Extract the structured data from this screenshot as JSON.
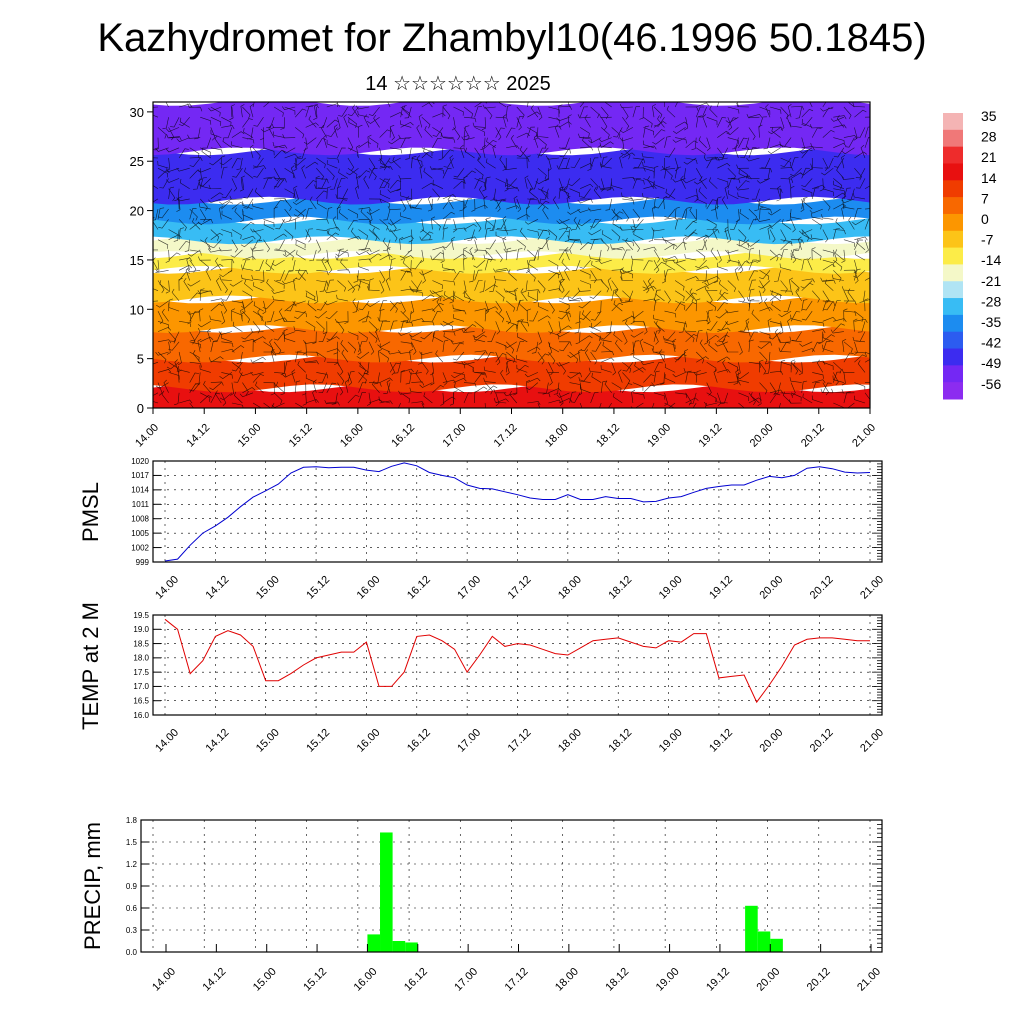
{
  "header": {
    "title": "Kazhydromet for Zhambyl10(46.1996 50.1845)",
    "subtitle": "14 ☆☆☆☆☆☆ 2025"
  },
  "colors": {
    "pmsl_line": "#0000d0",
    "temp_line": "#e00000",
    "precip_bar": "#00ff00",
    "wind_barb": "#000000"
  },
  "time_ticks": [
    "14.00",
    "14.12",
    "15.00",
    "15.12",
    "16.00",
    "16.12",
    "17.00",
    "17.12",
    "18.00",
    "18.12",
    "19.00",
    "19.12",
    "20.00",
    "20.12",
    "21.00"
  ],
  "colorbar": {
    "labels": [
      "35",
      "28",
      "21",
      "14",
      "7",
      "0",
      "-7",
      "-14",
      "-21",
      "-28",
      "-35",
      "-42",
      "-49",
      "-56"
    ],
    "colors": [
      "#f4b4b4",
      "#f07878",
      "#ee2c2c",
      "#e81010",
      "#f03c00",
      "#f86800",
      "#fc9600",
      "#fcc418",
      "#fcec48",
      "#f4f8c8",
      "#b0e4f4",
      "#38bcf4",
      "#1c8cf0",
      "#2c5cf0",
      "#3c2cf0",
      "#7428f4",
      "#8c2cf0"
    ]
  },
  "chart_data": [
    {
      "type": "heatmap",
      "title": "",
      "ylabel": "",
      "xlabel": "",
      "ylim": [
        0,
        30
      ],
      "yticks": [
        0,
        5,
        10,
        15,
        20,
        25,
        30
      ],
      "x_categories": [
        "14.00",
        "14.12",
        "15.00",
        "15.12",
        "16.00",
        "16.12",
        "17.00",
        "17.12",
        "18.00",
        "18.12",
        "19.00",
        "19.12",
        "20.00",
        "20.12",
        "21.00"
      ],
      "color_bands": [
        {
          "ymin": 0,
          "ymax": 2,
          "value": 21
        },
        {
          "ymin": 2,
          "ymax": 5,
          "value": 14
        },
        {
          "ymin": 5,
          "ymax": 8,
          "value": 7
        },
        {
          "ymin": 8,
          "ymax": 11,
          "value": 0
        },
        {
          "ymin": 11,
          "ymax": 14,
          "value": -7
        },
        {
          "ymin": 14,
          "ymax": 15.5,
          "value": -14
        },
        {
          "ymin": 15.5,
          "ymax": 17,
          "value": -21
        },
        {
          "ymin": 17,
          "ymax": 19,
          "value": -35
        },
        {
          "ymin": 19,
          "ymax": 21,
          "value": -42
        },
        {
          "ymin": 21,
          "ymax": 26,
          "value": -56
        },
        {
          "ymin": 26,
          "ymax": 31,
          "value": -63
        }
      ],
      "overlay": "wind barbs",
      "colorbar_levels": [
        35,
        28,
        21,
        14,
        7,
        0,
        -7,
        -14,
        -21,
        -28,
        -35,
        -42,
        -49,
        -56
      ]
    },
    {
      "type": "line",
      "ylabel": "PMSL",
      "ylim": [
        999,
        1020
      ],
      "yticks": [
        999,
        1002,
        1005,
        1008,
        1011,
        1014,
        1017,
        1020
      ],
      "x_categories": [
        "14.00",
        "14.12",
        "15.00",
        "15.12",
        "16.00",
        "16.12",
        "17.00",
        "17.12",
        "18.00",
        "18.12",
        "19.00",
        "19.12",
        "20.00",
        "20.12",
        "21.00"
      ],
      "series": [
        {
          "x": [
            0,
            0.25,
            0.5,
            0.75,
            1,
            1.25,
            1.5,
            1.75,
            2,
            2.25,
            2.5,
            2.75,
            3,
            3.25,
            3.5,
            3.75,
            4,
            4.25,
            4.5,
            4.75,
            5,
            5.25,
            5.5,
            5.75,
            6,
            6.25,
            6.5,
            6.75,
            7,
            7.25,
            7.5,
            7.75,
            8,
            8.25,
            8.5,
            8.75,
            9,
            9.25,
            9.5,
            9.75,
            10,
            10.25,
            10.5,
            10.75,
            11,
            11.25,
            11.5,
            11.75,
            12,
            12.25,
            12.5,
            12.75,
            13,
            13.25,
            13.5,
            13.75,
            14
          ],
          "values": [
            999.2,
            999.6,
            1002.5,
            1005.0,
            1006.5,
            1008.3,
            1010.5,
            1012.5,
            1013.8,
            1015.2,
            1017.5,
            1018.7,
            1018.8,
            1018.6,
            1018.7,
            1018.7,
            1018.1,
            1017.8,
            1018.9,
            1019.6,
            1019.0,
            1017.6,
            1017.0,
            1016.5,
            1015.0,
            1014.3,
            1014.2,
            1013.6,
            1013.0,
            1012.3,
            1012.0,
            1012.0,
            1013.0,
            1012.0,
            1012.0,
            1012.6,
            1012.2,
            1012.2,
            1011.5,
            1011.6,
            1012.3,
            1012.6,
            1013.5,
            1014.3,
            1014.7,
            1015.0,
            1015.0,
            1016.0,
            1016.8,
            1016.5,
            1017.0,
            1018.5,
            1018.8,
            1018.4,
            1017.7,
            1017.5,
            1017.6
          ]
        }
      ]
    },
    {
      "type": "line",
      "ylabel": "TEMP at 2 M",
      "ylim": [
        16.0,
        19.5
      ],
      "yticks": [
        16.0,
        16.5,
        17.0,
        17.5,
        18.0,
        18.5,
        19.0,
        19.5
      ],
      "x_categories": [
        "14.00",
        "14.12",
        "15.00",
        "15.12",
        "16.00",
        "16.12",
        "17.00",
        "17.12",
        "18.00",
        "18.12",
        "19.00",
        "19.12",
        "20.00",
        "20.12",
        "21.00"
      ],
      "series": [
        {
          "x": [
            0,
            0.25,
            0.5,
            0.75,
            1,
            1.25,
            1.5,
            1.75,
            2,
            2.25,
            2.5,
            2.75,
            3,
            3.25,
            3.5,
            3.75,
            4,
            4.25,
            4.5,
            4.75,
            5,
            5.25,
            5.5,
            5.75,
            6,
            6.25,
            6.5,
            6.75,
            7,
            7.25,
            7.5,
            7.75,
            8,
            8.25,
            8.5,
            8.75,
            9,
            9.25,
            9.5,
            9.75,
            10,
            10.25,
            10.5,
            10.75,
            11,
            11.25,
            11.5,
            11.75,
            12,
            12.25,
            12.5,
            12.75,
            13,
            13.25,
            13.5,
            13.75,
            14
          ],
          "values": [
            19.35,
            19.0,
            17.45,
            17.9,
            18.75,
            18.95,
            18.8,
            18.4,
            17.2,
            17.2,
            17.45,
            17.75,
            18.0,
            18.1,
            18.2,
            18.2,
            18.55,
            17.0,
            17.0,
            17.5,
            18.75,
            18.8,
            18.6,
            18.3,
            17.5,
            18.1,
            18.75,
            18.4,
            18.5,
            18.45,
            18.3,
            18.15,
            18.1,
            18.35,
            18.6,
            18.65,
            18.7,
            18.55,
            18.4,
            18.35,
            18.6,
            18.55,
            18.85,
            18.85,
            17.3,
            17.35,
            17.4,
            16.45,
            17.05,
            17.7,
            18.45,
            18.65,
            18.7,
            18.7,
            18.65,
            18.6,
            18.6
          ]
        }
      ]
    },
    {
      "type": "bar",
      "ylabel": "PRECIP, mm",
      "ylim": [
        0.0,
        1.8
      ],
      "yticks": [
        0.0,
        0.3,
        0.6,
        0.9,
        1.2,
        1.5,
        1.8
      ],
      "x_categories": [
        "14.00",
        "14.12",
        "15.00",
        "15.12",
        "16.00",
        "16.12",
        "17.00",
        "17.12",
        "18.00",
        "18.12",
        "19.00",
        "19.12",
        "20.00",
        "20.12",
        "21.00"
      ],
      "bars": [
        {
          "x": 4.0,
          "value": 0.24
        },
        {
          "x": 4.25,
          "value": 1.63
        },
        {
          "x": 4.5,
          "value": 0.15
        },
        {
          "x": 4.75,
          "value": 0.13
        },
        {
          "x": 11.5,
          "value": 0.63
        },
        {
          "x": 11.75,
          "value": 0.28
        },
        {
          "x": 12.0,
          "value": 0.18
        }
      ]
    }
  ]
}
